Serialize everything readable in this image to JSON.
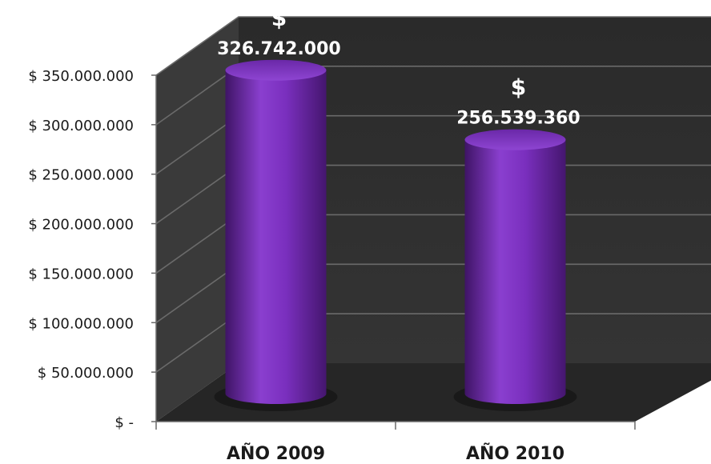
{
  "chart_data": {
    "type": "bar",
    "style": "3d-cylinder",
    "categories": [
      "AÑO 2009",
      "AÑO 2010"
    ],
    "values": [
      326742000,
      256539360
    ],
    "data_labels": [
      {
        "currency": "$",
        "amount": "326.742.000"
      },
      {
        "currency": "$",
        "amount": "256.539.360"
      }
    ],
    "ylim": [
      0,
      350000000
    ],
    "yticks": [
      {
        "value": 0,
        "label": "$ -"
      },
      {
        "value": 50000000,
        "label": "$ 50.000.000"
      },
      {
        "value": 100000000,
        "label": "$ 100.000.000"
      },
      {
        "value": 150000000,
        "label": "$ 150.000.000"
      },
      {
        "value": 200000000,
        "label": "$ 200.000.000"
      },
      {
        "value": 250000000,
        "label": "$ 250.000.000"
      },
      {
        "value": 300000000,
        "label": "$ 300.000.000"
      },
      {
        "value": 350000000,
        "label": "$ 350.000.000"
      }
    ],
    "grid": true,
    "legend": "none",
    "colors": {
      "bar": "#7B2FBE",
      "bar_dark": "#4A1875",
      "bar_light": "#A36FD6",
      "wall": "#2E2E2E",
      "side_wall": "#3A3A3A",
      "floor": "#262626",
      "grid": "#6A6A6A"
    }
  }
}
